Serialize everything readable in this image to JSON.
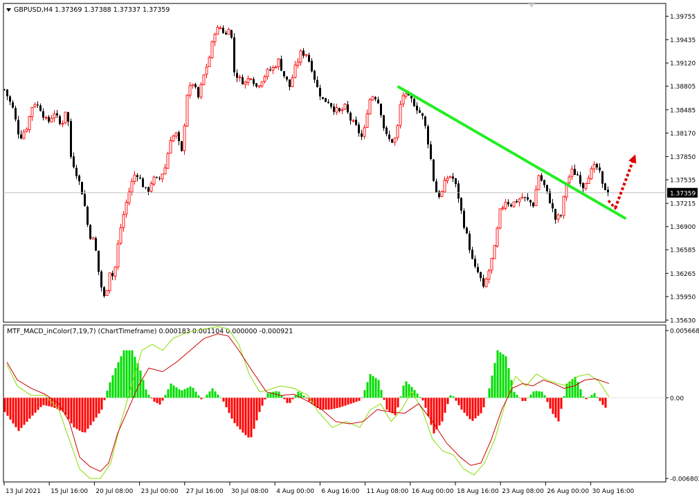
{
  "window": {
    "symbol_header": "GBPUSD,H4  1.37369 1.37388 1.37337 1.37359",
    "menu_arrow_icon": "triangle-down-icon"
  },
  "indicator": {
    "header": "MTF_MACD_inColor(7,19,7) (ChartTimeframe) 0.000183 0.001104 0.000000 -0.000921"
  },
  "colors": {
    "bull_candle": "#ff0000",
    "bear_candle": "#000000",
    "hist_up": "#00dd00",
    "hist_down": "#ff0000",
    "macd_line": "#cc0000",
    "signal_line": "#88dd00",
    "trendline": "#22ee22",
    "arrow": "#dd0000",
    "price_line": "#c0c0c0"
  },
  "chart_data": [
    {
      "type": "candlestick",
      "title": "GBPUSD,H4",
      "current_price": "1.37359",
      "y_ticks": [
        "1.39755",
        "1.39435",
        "1.39120",
        "1.38805",
        "1.38485",
        "1.38170",
        "1.37850",
        "1.37535",
        "1.37215",
        "1.36900",
        "1.36585",
        "1.36265",
        "1.35950",
        "1.35630"
      ],
      "ylim": [
        1.3563,
        1.399
      ],
      "x_labels": [
        "13 Jul 2021",
        "15 Jul 16:00",
        "20 Jul 08:00",
        "23 Jul 00:00",
        "27 Jul 16:00",
        "30 Jul 08:00",
        "4 Aug 00:00",
        "6 Aug 16:00",
        "11 Aug 08:00",
        "16 Aug 00:00",
        "18 Aug 16:00",
        "23 Aug 08:00",
        "26 Aug 00:00",
        "30 Aug 16:00"
      ],
      "close_path": [
        [
          0,
          1.3876
        ],
        [
          12,
          1.385
        ],
        [
          22,
          1.381
        ],
        [
          32,
          1.3825
        ],
        [
          42,
          1.386
        ],
        [
          52,
          1.385
        ],
        [
          62,
          1.383
        ],
        [
          72,
          1.3845
        ],
        [
          82,
          1.3825
        ],
        [
          90,
          1.3855
        ],
        [
          96,
          1.3785
        ],
        [
          105,
          1.376
        ],
        [
          114,
          1.373
        ],
        [
          122,
          1.368
        ],
        [
          130,
          1.367
        ],
        [
          138,
          1.3615
        ],
        [
          145,
          1.359
        ],
        [
          152,
          1.363
        ],
        [
          158,
          1.362
        ],
        [
          166,
          1.368
        ],
        [
          174,
          1.3715
        ],
        [
          182,
          1.3745
        ],
        [
          190,
          1.3765
        ],
        [
          198,
          1.375
        ],
        [
          206,
          1.3735
        ],
        [
          214,
          1.3755
        ],
        [
          222,
          1.3752
        ],
        [
          232,
          1.377
        ],
        [
          240,
          1.381
        ],
        [
          248,
          1.3815
        ],
        [
          256,
          1.379
        ],
        [
          264,
          1.387
        ],
        [
          272,
          1.3885
        ],
        [
          280,
          1.3865
        ],
        [
          288,
          1.3895
        ],
        [
          296,
          1.392
        ],
        [
          304,
          1.3955
        ],
        [
          312,
          1.396
        ],
        [
          320,
          1.395
        ],
        [
          326,
          1.3968
        ],
        [
          332,
          1.39
        ],
        [
          340,
          1.389
        ],
        [
          348,
          1.3885
        ],
        [
          356,
          1.3895
        ],
        [
          364,
          1.388
        ],
        [
          372,
          1.389
        ],
        [
          380,
          1.39
        ],
        [
          388,
          1.3905
        ],
        [
          396,
          1.3915
        ],
        [
          404,
          1.3895
        ],
        [
          412,
          1.388
        ],
        [
          420,
          1.3905
        ],
        [
          428,
          1.3925
        ],
        [
          436,
          1.3925
        ],
        [
          444,
          1.3905
        ],
        [
          452,
          1.3878
        ],
        [
          460,
          1.3862
        ],
        [
          468,
          1.386
        ],
        [
          476,
          1.385
        ],
        [
          484,
          1.3845
        ],
        [
          492,
          1.3852
        ],
        [
          500,
          1.3835
        ],
        [
          508,
          1.3825
        ],
        [
          518,
          1.3808
        ],
        [
          526,
          1.386
        ],
        [
          534,
          1.387
        ],
        [
          542,
          1.3855
        ],
        [
          550,
          1.3815
        ],
        [
          558,
          1.3805
        ],
        [
          566,
          1.381
        ],
        [
          574,
          1.387
        ],
        [
          582,
          1.3865
        ],
        [
          590,
          1.386
        ],
        [
          598,
          1.3848
        ],
        [
          606,
          1.3835
        ],
        [
          614,
          1.3795
        ],
        [
          622,
          1.374
        ],
        [
          630,
          1.373
        ],
        [
          638,
          1.3755
        ],
        [
          646,
          1.376
        ],
        [
          654,
          1.374
        ],
        [
          662,
          1.37
        ],
        [
          670,
          1.367
        ],
        [
          678,
          1.3635
        ],
        [
          686,
          1.3625
        ],
        [
          692,
          1.3605
        ],
        [
          700,
          1.363
        ],
        [
          708,
          1.366
        ],
        [
          716,
          1.371
        ],
        [
          724,
          1.3725
        ],
        [
          732,
          1.372
        ],
        [
          740,
          1.3725
        ],
        [
          748,
          1.373
        ],
        [
          756,
          1.3725
        ],
        [
          764,
          1.372
        ],
        [
          772,
          1.376
        ],
        [
          780,
          1.3745
        ],
        [
          788,
          1.3725
        ],
        [
          796,
          1.37
        ],
        [
          804,
          1.3705
        ],
        [
          812,
          1.375
        ],
        [
          820,
          1.3765
        ],
        [
          828,
          1.376
        ],
        [
          836,
          1.3745
        ],
        [
          844,
          1.376
        ],
        [
          852,
          1.377
        ],
        [
          858,
          1.377
        ],
        [
          864,
          1.3745
        ],
        [
          870,
          1.374
        ],
        [
          875,
          1.3736
        ]
      ],
      "trendline": {
        "from": [
          576,
          1.38795
        ],
        "to": [
          903,
          1.37015
        ]
      },
      "arrow": {
        "from": [
          889,
          1.3715
        ],
        "to": [
          918,
          1.3788
        ]
      }
    },
    {
      "type": "histogram+lines",
      "title": "MTF_MACD_inColor(7,19,7)",
      "y_ticks": [
        "0.005668",
        "0.00",
        "-0.006802"
      ],
      "ylim": [
        -0.006802,
        0.005668
      ],
      "histogram_samples": [
        [
          0,
          -0.0012
        ],
        [
          20,
          -0.0028
        ],
        [
          40,
          -0.0015
        ],
        [
          55,
          -0.0006
        ],
        [
          70,
          -0.0008
        ],
        [
          85,
          -0.0012
        ],
        [
          100,
          -0.0025
        ],
        [
          115,
          -0.003
        ],
        [
          128,
          -0.002
        ],
        [
          140,
          -0.001
        ],
        [
          150,
          0.001
        ],
        [
          160,
          0.0025
        ],
        [
          172,
          0.004
        ],
        [
          184,
          0.004
        ],
        [
          195,
          0.0025
        ],
        [
          205,
          0.0005
        ],
        [
          215,
          -0.0003
        ],
        [
          225,
          -0.0006
        ],
        [
          240,
          0.0012
        ],
        [
          255,
          0.0006
        ],
        [
          270,
          0.001
        ],
        [
          285,
          -0.0002
        ],
        [
          300,
          0.0008
        ],
        [
          315,
          -0.0002
        ],
        [
          330,
          -0.002
        ],
        [
          345,
          -0.003
        ],
        [
          355,
          -0.0035
        ],
        [
          368,
          -0.0012
        ],
        [
          380,
          0.0004
        ],
        [
          395,
          0.0006
        ],
        [
          410,
          -0.0006
        ],
        [
          425,
          0.0006
        ],
        [
          440,
          -0.0003
        ],
        [
          455,
          -0.001
        ],
        [
          470,
          -0.001
        ],
        [
          485,
          -0.0008
        ],
        [
          500,
          -0.0005
        ],
        [
          515,
          -0.0002
        ],
        [
          528,
          0.002
        ],
        [
          540,
          0.0015
        ],
        [
          552,
          -0.001
        ],
        [
          565,
          -0.0015
        ],
        [
          578,
          0.0015
        ],
        [
          590,
          0.0008
        ],
        [
          605,
          -0.0003
        ],
        [
          620,
          -0.003
        ],
        [
          632,
          -0.002
        ],
        [
          645,
          0.0004
        ],
        [
          660,
          -0.001
        ],
        [
          675,
          -0.002
        ],
        [
          690,
          -0.0012
        ],
        [
          700,
          0.0008
        ],
        [
          712,
          0.004
        ],
        [
          724,
          0.0035
        ],
        [
          736,
          0.0005
        ],
        [
          750,
          -0.0004
        ],
        [
          765,
          0.0006
        ],
        [
          778,
          0.0005
        ],
        [
          790,
          -0.0012
        ],
        [
          800,
          -0.002
        ],
        [
          812,
          0.0012
        ],
        [
          825,
          0.0018
        ],
        [
          838,
          -0.0002
        ],
        [
          852,
          0.0004
        ],
        [
          864,
          -0.0006
        ],
        [
          874,
          -0.0012
        ]
      ],
      "macd_line": [
        [
          5,
          0.003
        ],
        [
          20,
          0.0015
        ],
        [
          40,
          0.0008
        ],
        [
          60,
          0.0003
        ],
        [
          80,
          -0.0005
        ],
        [
          95,
          -0.002
        ],
        [
          110,
          -0.005
        ],
        [
          125,
          -0.0058
        ],
        [
          140,
          -0.0062
        ],
        [
          152,
          -0.0055
        ],
        [
          165,
          -0.003
        ],
        [
          180,
          -0.001
        ],
        [
          195,
          0.001
        ],
        [
          210,
          0.0025
        ],
        [
          230,
          0.0022
        ],
        [
          250,
          0.003
        ],
        [
          270,
          0.004
        ],
        [
          290,
          0.005
        ],
        [
          310,
          0.0054
        ],
        [
          325,
          0.0052
        ],
        [
          340,
          0.004
        ],
        [
          360,
          0.0022
        ],
        [
          380,
          0.0005
        ],
        [
          400,
          0.0002
        ],
        [
          420,
          0.0003
        ],
        [
          440,
          -0.0003
        ],
        [
          460,
          -0.001
        ],
        [
          480,
          -0.002
        ],
        [
          500,
          -0.0022
        ],
        [
          520,
          -0.002
        ],
        [
          540,
          -0.001
        ],
        [
          560,
          -0.0012
        ],
        [
          580,
          -0.0013
        ],
        [
          600,
          -0.0005
        ],
        [
          620,
          -0.002
        ],
        [
          640,
          -0.0038
        ],
        [
          660,
          -0.005
        ],
        [
          675,
          -0.0057
        ],
        [
          690,
          -0.0055
        ],
        [
          705,
          -0.0035
        ],
        [
          720,
          -0.001
        ],
        [
          735,
          0.0008
        ],
        [
          750,
          0.0012
        ],
        [
          765,
          0.001
        ],
        [
          780,
          0.0015
        ],
        [
          795,
          0.0012
        ],
        [
          810,
          0.0008
        ],
        [
          825,
          0.001
        ],
        [
          840,
          0.0015
        ],
        [
          855,
          0.0016
        ],
        [
          875,
          0.0012
        ]
      ],
      "signal_line": [
        [
          5,
          0.0028
        ],
        [
          20,
          0.001
        ],
        [
          40,
          0.0002
        ],
        [
          60,
          0.0002
        ],
        [
          80,
          -0.001
        ],
        [
          95,
          -0.0035
        ],
        [
          110,
          -0.006
        ],
        [
          125,
          -0.0068
        ],
        [
          140,
          -0.0068
        ],
        [
          155,
          -0.0055
        ],
        [
          170,
          -0.002
        ],
        [
          185,
          0.001
        ],
        [
          200,
          0.004
        ],
        [
          215,
          0.0045
        ],
        [
          230,
          0.004
        ],
        [
          245,
          0.005
        ],
        [
          265,
          0.0055
        ],
        [
          290,
          0.0058
        ],
        [
          310,
          0.006
        ],
        [
          325,
          0.0058
        ],
        [
          340,
          0.0045
        ],
        [
          355,
          0.002
        ],
        [
          370,
          0.0005
        ],
        [
          385,
          0.0007
        ],
        [
          400,
          0.001
        ],
        [
          420,
          0.0008
        ],
        [
          440,
          0.0002
        ],
        [
          455,
          -0.0012
        ],
        [
          475,
          -0.0025
        ],
        [
          495,
          -0.002
        ],
        [
          515,
          -0.0025
        ],
        [
          530,
          -0.001
        ],
        [
          545,
          -0.0005
        ],
        [
          560,
          -0.002
        ],
        [
          575,
          -0.001
        ],
        [
          590,
          0.0005
        ],
        [
          605,
          -0.001
        ],
        [
          620,
          -0.0035
        ],
        [
          635,
          -0.0045
        ],
        [
          650,
          -0.0048
        ],
        [
          665,
          -0.006
        ],
        [
          680,
          -0.0065
        ],
        [
          695,
          -0.0055
        ],
        [
          710,
          -0.0035
        ],
        [
          725,
          -0.0005
        ],
        [
          740,
          0.0018
        ],
        [
          755,
          0.001
        ],
        [
          770,
          0.002
        ],
        [
          785,
          0.0015
        ],
        [
          800,
          0.0012
        ],
        [
          815,
          0.001
        ],
        [
          830,
          0.0018
        ],
        [
          845,
          0.002
        ],
        [
          860,
          0.0014
        ],
        [
          875,
          0.0001
        ]
      ]
    }
  ]
}
